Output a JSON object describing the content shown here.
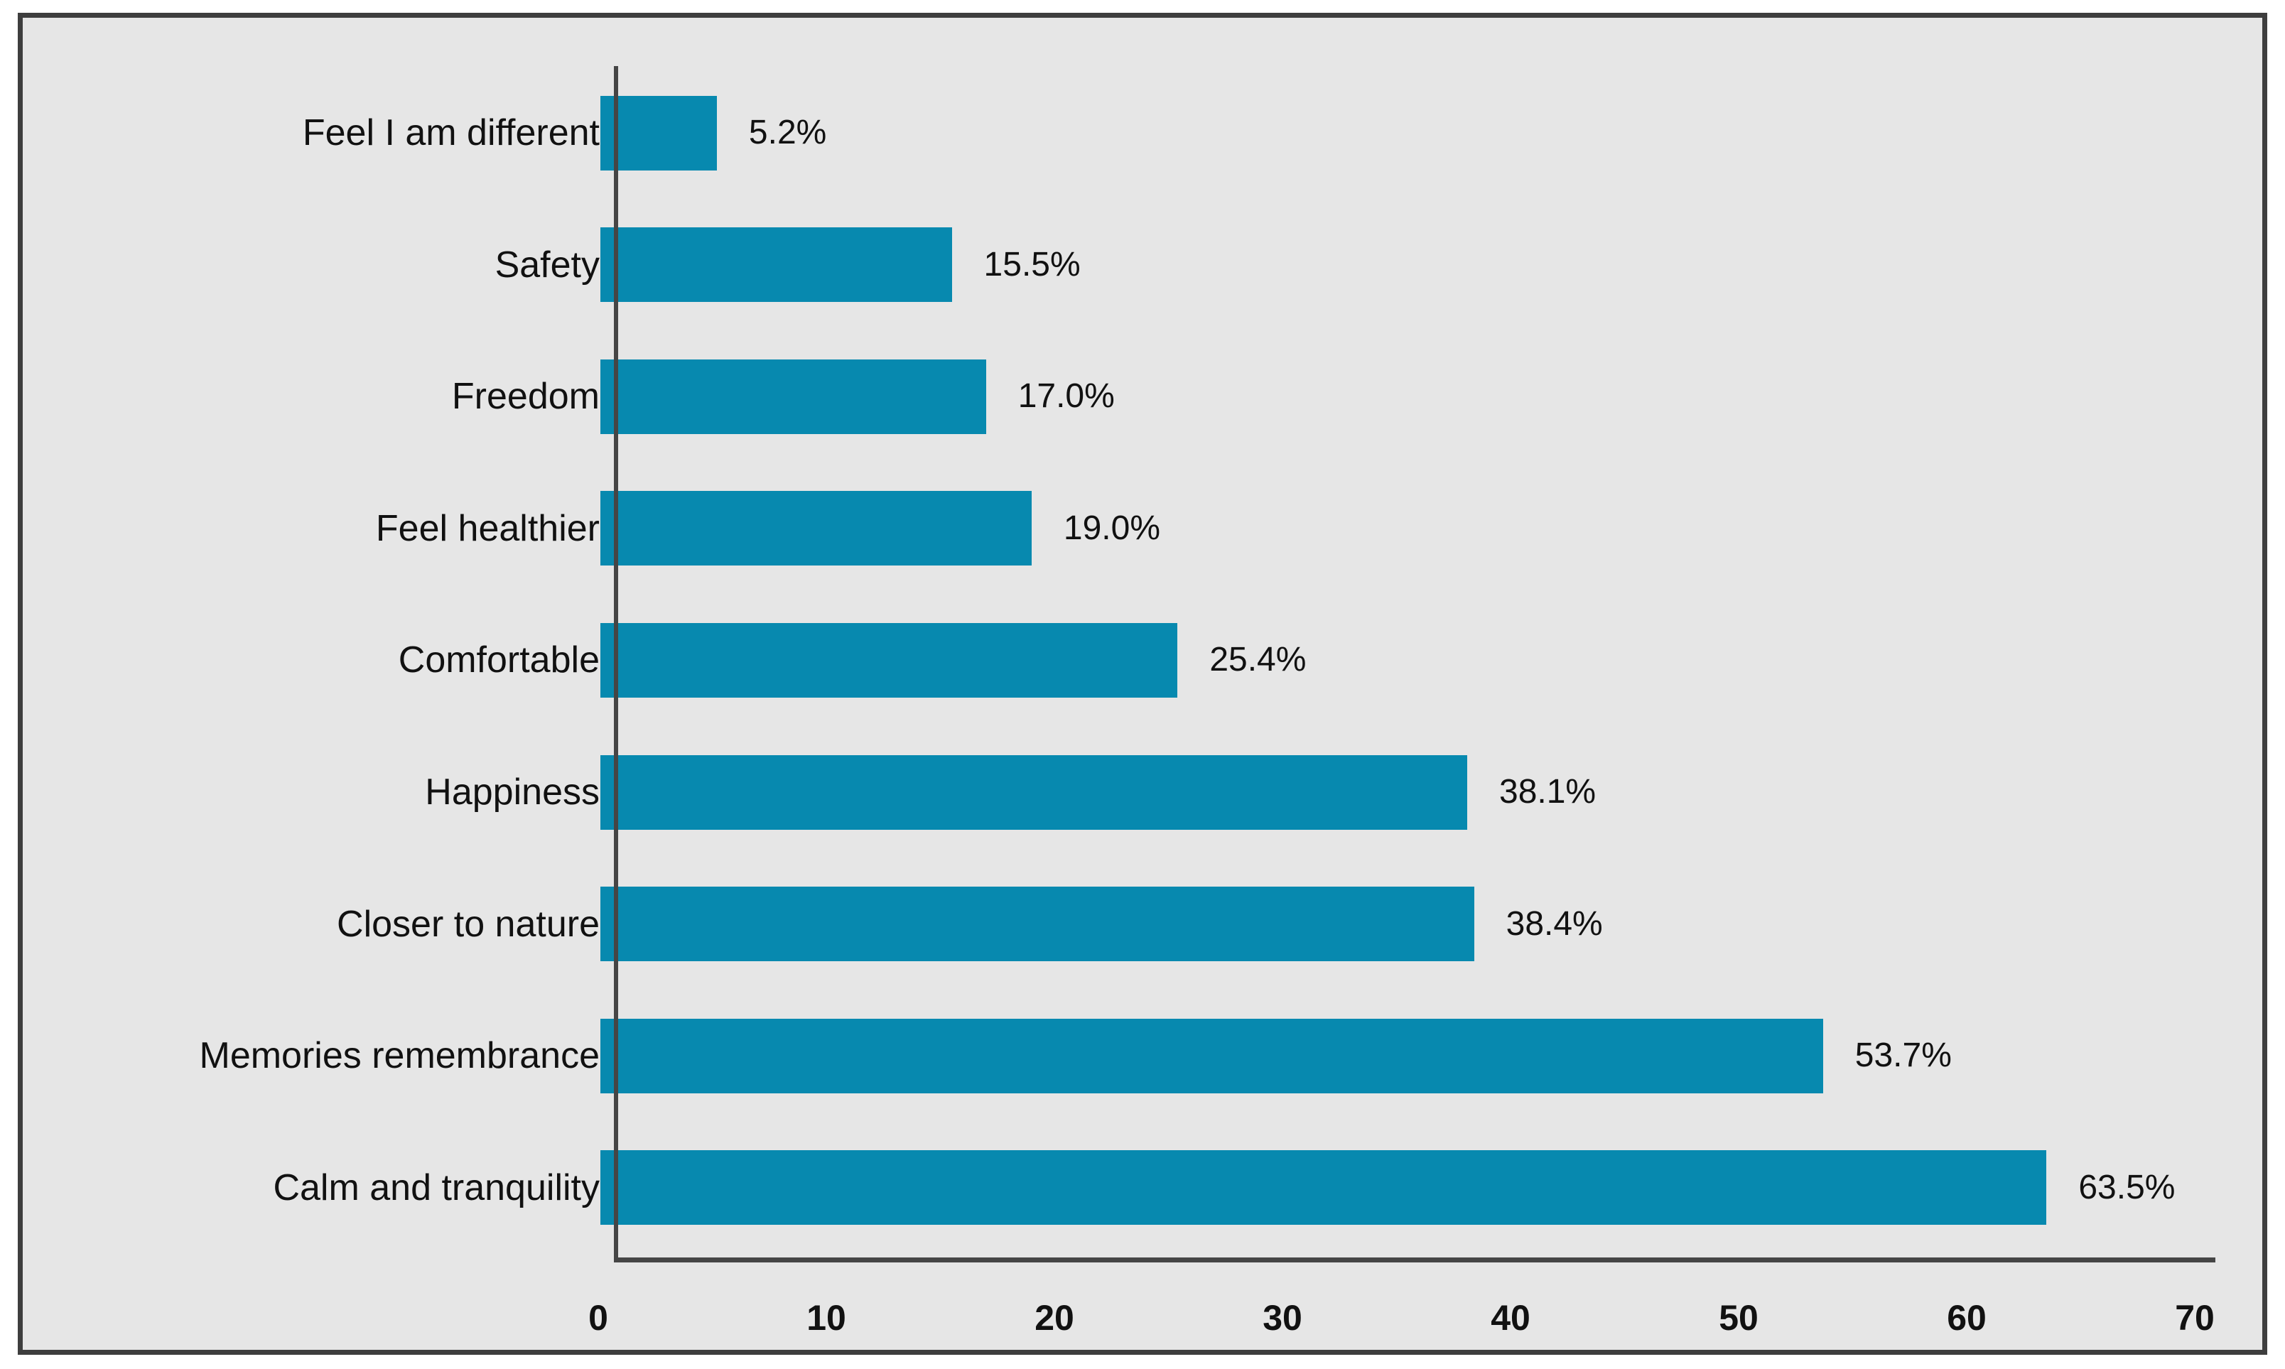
{
  "chart_data": {
    "type": "bar",
    "orientation": "horizontal",
    "title": "",
    "xlabel": "",
    "ylabel": "",
    "categories": [
      "Feel I am different",
      "Safety",
      "Freedom",
      "Feel healthier",
      "Comfortable",
      "Happiness",
      "Closer to nature",
      "Memories remembrance",
      "Calm and tranquility"
    ],
    "values": [
      5.2,
      15.5,
      17.0,
      19.0,
      25.4,
      38.1,
      38.4,
      53.7,
      63.5
    ],
    "data_labels": [
      "5.2%",
      "15.5%",
      "17.0%",
      "19.0%",
      "25.4%",
      "38.1%",
      "38.4%",
      "53.7%",
      "63.5%"
    ],
    "xlim": [
      0,
      70
    ],
    "xticks": [
      0,
      10,
      20,
      30,
      40,
      50,
      60,
      70
    ],
    "grid": false,
    "legend": false,
    "bar_color": "#0789af",
    "background_color": "#e6e6e6",
    "border_color": "#3e3e3e",
    "axis_color": "#454545",
    "text_color": "#111111"
  }
}
